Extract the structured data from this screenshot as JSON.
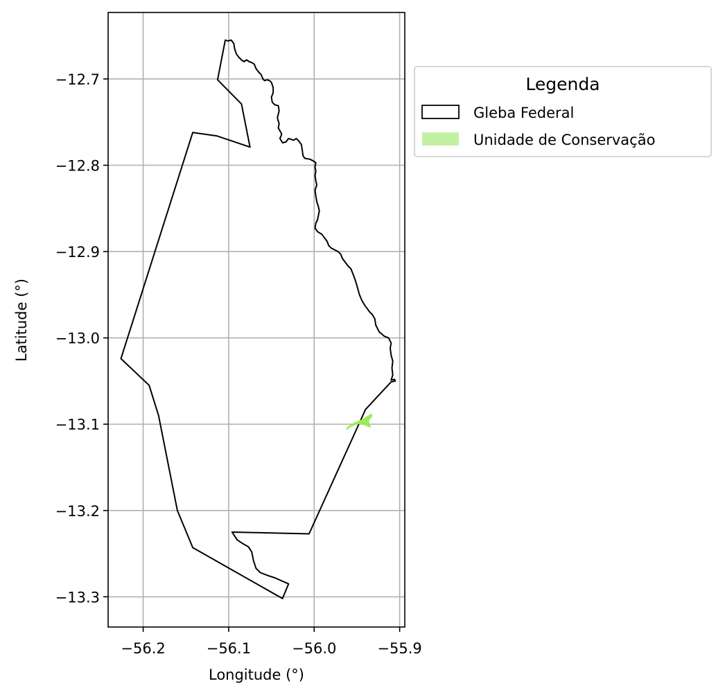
{
  "chart_data": {
    "type": "map",
    "xlabel": "Longitude (°)",
    "ylabel": "Latitude (°)",
    "xlim": [
      -56.241,
      -55.894
    ],
    "ylim": [
      -13.335,
      -12.623
    ],
    "xticks": [
      {
        "value": -56.2,
        "label": "−56.2"
      },
      {
        "value": -56.1,
        "label": "−56.1"
      },
      {
        "value": -56.0,
        "label": "−56.0"
      },
      {
        "value": -55.9,
        "label": "−55.9"
      }
    ],
    "yticks": [
      {
        "value": -12.7,
        "label": "−12.7"
      },
      {
        "value": -12.8,
        "label": "−12.8"
      },
      {
        "value": -12.9,
        "label": "−12.9"
      },
      {
        "value": -13.0,
        "label": "−13.0"
      },
      {
        "value": -13.1,
        "label": "−13.1"
      },
      {
        "value": -13.2,
        "label": "−13.2"
      },
      {
        "value": -13.3,
        "label": "−13.3"
      }
    ],
    "grid": true,
    "legend": {
      "title": "Legenda",
      "placement": "outside right, top",
      "entries": [
        {
          "label": "Gleba Federal",
          "style": "outline",
          "edge_color": "#000000",
          "fill_color": "#ffffff"
        },
        {
          "label": "Unidade de Conservação",
          "style": "fill",
          "fill_color": "#c3f1a4"
        }
      ]
    },
    "layers": [
      {
        "name": "Gleba Federal",
        "edge_color": "#000000",
        "fill_color": "none",
        "polygon": [
          [
            -56.104,
            -12.655
          ],
          [
            -56.101,
            -12.656
          ],
          [
            -56.097,
            -12.655
          ],
          [
            -56.094,
            -12.659
          ],
          [
            -56.093,
            -12.665
          ],
          [
            -56.091,
            -12.671
          ],
          [
            -56.088,
            -12.675
          ],
          [
            -56.085,
            -12.678
          ],
          [
            -56.082,
            -12.68
          ],
          [
            -56.079,
            -12.678
          ],
          [
            -56.076,
            -12.68
          ],
          [
            -56.073,
            -12.681
          ],
          [
            -56.07,
            -12.683
          ],
          [
            -56.068,
            -12.688
          ],
          [
            -56.065,
            -12.692
          ],
          [
            -56.062,
            -12.695
          ],
          [
            -56.06,
            -12.7
          ],
          [
            -56.058,
            -12.702
          ],
          [
            -56.055,
            -12.701
          ],
          [
            -56.052,
            -12.702
          ],
          [
            -56.05,
            -12.704
          ],
          [
            -56.048,
            -12.71
          ],
          [
            -56.048,
            -12.716
          ],
          [
            -56.05,
            -12.721
          ],
          [
            -56.049,
            -12.727
          ],
          [
            -56.046,
            -12.73
          ],
          [
            -56.042,
            -12.731
          ],
          [
            -56.041,
            -12.737
          ],
          [
            -56.043,
            -12.745
          ],
          [
            -56.041,
            -12.752
          ],
          [
            -56.042,
            -12.757
          ],
          [
            -56.04,
            -12.76
          ],
          [
            -56.038,
            -12.764
          ],
          [
            -56.04,
            -12.769
          ],
          [
            -56.037,
            -12.774
          ],
          [
            -56.033,
            -12.773
          ],
          [
            -56.03,
            -12.769
          ],
          [
            -56.027,
            -12.77
          ],
          [
            -56.024,
            -12.771
          ],
          [
            -56.021,
            -12.769
          ],
          [
            -56.018,
            -12.772
          ],
          [
            -56.015,
            -12.776
          ],
          [
            -56.014,
            -12.782
          ],
          [
            -56.013,
            -12.789
          ],
          [
            -56.011,
            -12.792
          ],
          [
            -56.005,
            -12.793
          ],
          [
            -56.001,
            -12.795
          ],
          [
            -55.998,
            -12.797
          ],
          [
            -55.999,
            -12.802
          ],
          [
            -55.998,
            -12.807
          ],
          [
            -55.999,
            -12.812
          ],
          [
            -55.998,
            -12.818
          ],
          [
            -55.997,
            -12.823
          ],
          [
            -55.999,
            -12.829
          ],
          [
            -55.998,
            -12.836
          ],
          [
            -55.997,
            -12.842
          ],
          [
            -55.995,
            -12.848
          ],
          [
            -55.994,
            -12.853
          ],
          [
            -55.995,
            -12.858
          ],
          [
            -55.996,
            -12.863
          ],
          [
            -55.998,
            -12.867
          ],
          [
            -55.999,
            -12.873
          ],
          [
            -55.996,
            -12.877
          ],
          [
            -55.991,
            -12.88
          ],
          [
            -55.988,
            -12.884
          ],
          [
            -55.985,
            -12.888
          ],
          [
            -55.983,
            -12.893
          ],
          [
            -55.98,
            -12.896
          ],
          [
            -55.976,
            -12.898
          ],
          [
            -55.972,
            -12.9
          ],
          [
            -55.969,
            -12.903
          ],
          [
            -55.967,
            -12.908
          ],
          [
            -55.964,
            -12.912
          ],
          [
            -55.961,
            -12.916
          ],
          [
            -55.957,
            -12.92
          ],
          [
            -55.955,
            -12.925
          ],
          [
            -55.953,
            -12.93
          ],
          [
            -55.951,
            -12.936
          ],
          [
            -55.949,
            -12.943
          ],
          [
            -55.947,
            -12.95
          ],
          [
            -55.944,
            -12.957
          ],
          [
            -55.941,
            -12.962
          ],
          [
            -55.938,
            -12.966
          ],
          [
            -55.935,
            -12.97
          ],
          [
            -55.932,
            -12.973
          ],
          [
            -55.929,
            -12.978
          ],
          [
            -55.928,
            -12.985
          ],
          [
            -55.924,
            -12.993
          ],
          [
            -55.918,
            -12.998
          ],
          [
            -55.913,
            -13.0
          ],
          [
            -55.91,
            -13.006
          ],
          [
            -55.911,
            -13.012
          ],
          [
            -55.91,
            -13.02
          ],
          [
            -55.908,
            -13.027
          ],
          [
            -55.909,
            -13.035
          ],
          [
            -55.908,
            -13.043
          ],
          [
            -55.91,
            -13.049
          ],
          [
            -55.906,
            -13.048
          ],
          [
            -55.905,
            -13.05
          ],
          [
            -55.91,
            -13.051
          ],
          [
            -55.94,
            -13.083
          ],
          [
            -56.006,
            -13.227
          ],
          [
            -56.096,
            -13.225
          ],
          [
            -56.09,
            -13.234
          ],
          [
            -56.084,
            -13.238
          ],
          [
            -56.077,
            -13.242
          ],
          [
            -56.073,
            -13.248
          ],
          [
            -56.071,
            -13.258
          ],
          [
            -56.068,
            -13.267
          ],
          [
            -56.063,
            -13.272
          ],
          [
            -56.055,
            -13.275
          ],
          [
            -56.046,
            -13.278
          ],
          [
            -56.03,
            -13.285
          ],
          [
            -56.037,
            -13.302
          ],
          [
            -56.142,
            -13.243
          ],
          [
            -56.16,
            -13.2
          ],
          [
            -56.182,
            -13.09
          ],
          [
            -56.193,
            -13.055
          ],
          [
            -56.226,
            -13.024
          ],
          [
            -56.142,
            -12.762
          ],
          [
            -56.114,
            -12.766
          ],
          [
            -56.075,
            -12.779
          ],
          [
            -56.085,
            -12.729
          ],
          [
            -56.113,
            -12.701
          ],
          [
            -56.104,
            -12.655
          ]
        ]
      },
      {
        "name": "Unidade de Conservação",
        "edge_color": "none",
        "fill_color": "#9bea5c",
        "polygon": [
          [
            -55.962,
            -13.104
          ],
          [
            -55.958,
            -13.101
          ],
          [
            -55.953,
            -13.098
          ],
          [
            -55.948,
            -13.096
          ],
          [
            -55.943,
            -13.094
          ],
          [
            -55.939,
            -13.091
          ],
          [
            -55.935,
            -13.089
          ],
          [
            -55.933,
            -13.087
          ],
          [
            -55.932,
            -13.091
          ],
          [
            -55.936,
            -13.096
          ],
          [
            -55.935,
            -13.1
          ],
          [
            -55.933,
            -13.104
          ],
          [
            -55.937,
            -13.103
          ],
          [
            -55.942,
            -13.101
          ],
          [
            -55.947,
            -13.1
          ],
          [
            -55.952,
            -13.101
          ],
          [
            -55.957,
            -13.103
          ],
          [
            -55.962,
            -13.107
          ]
        ]
      }
    ]
  }
}
